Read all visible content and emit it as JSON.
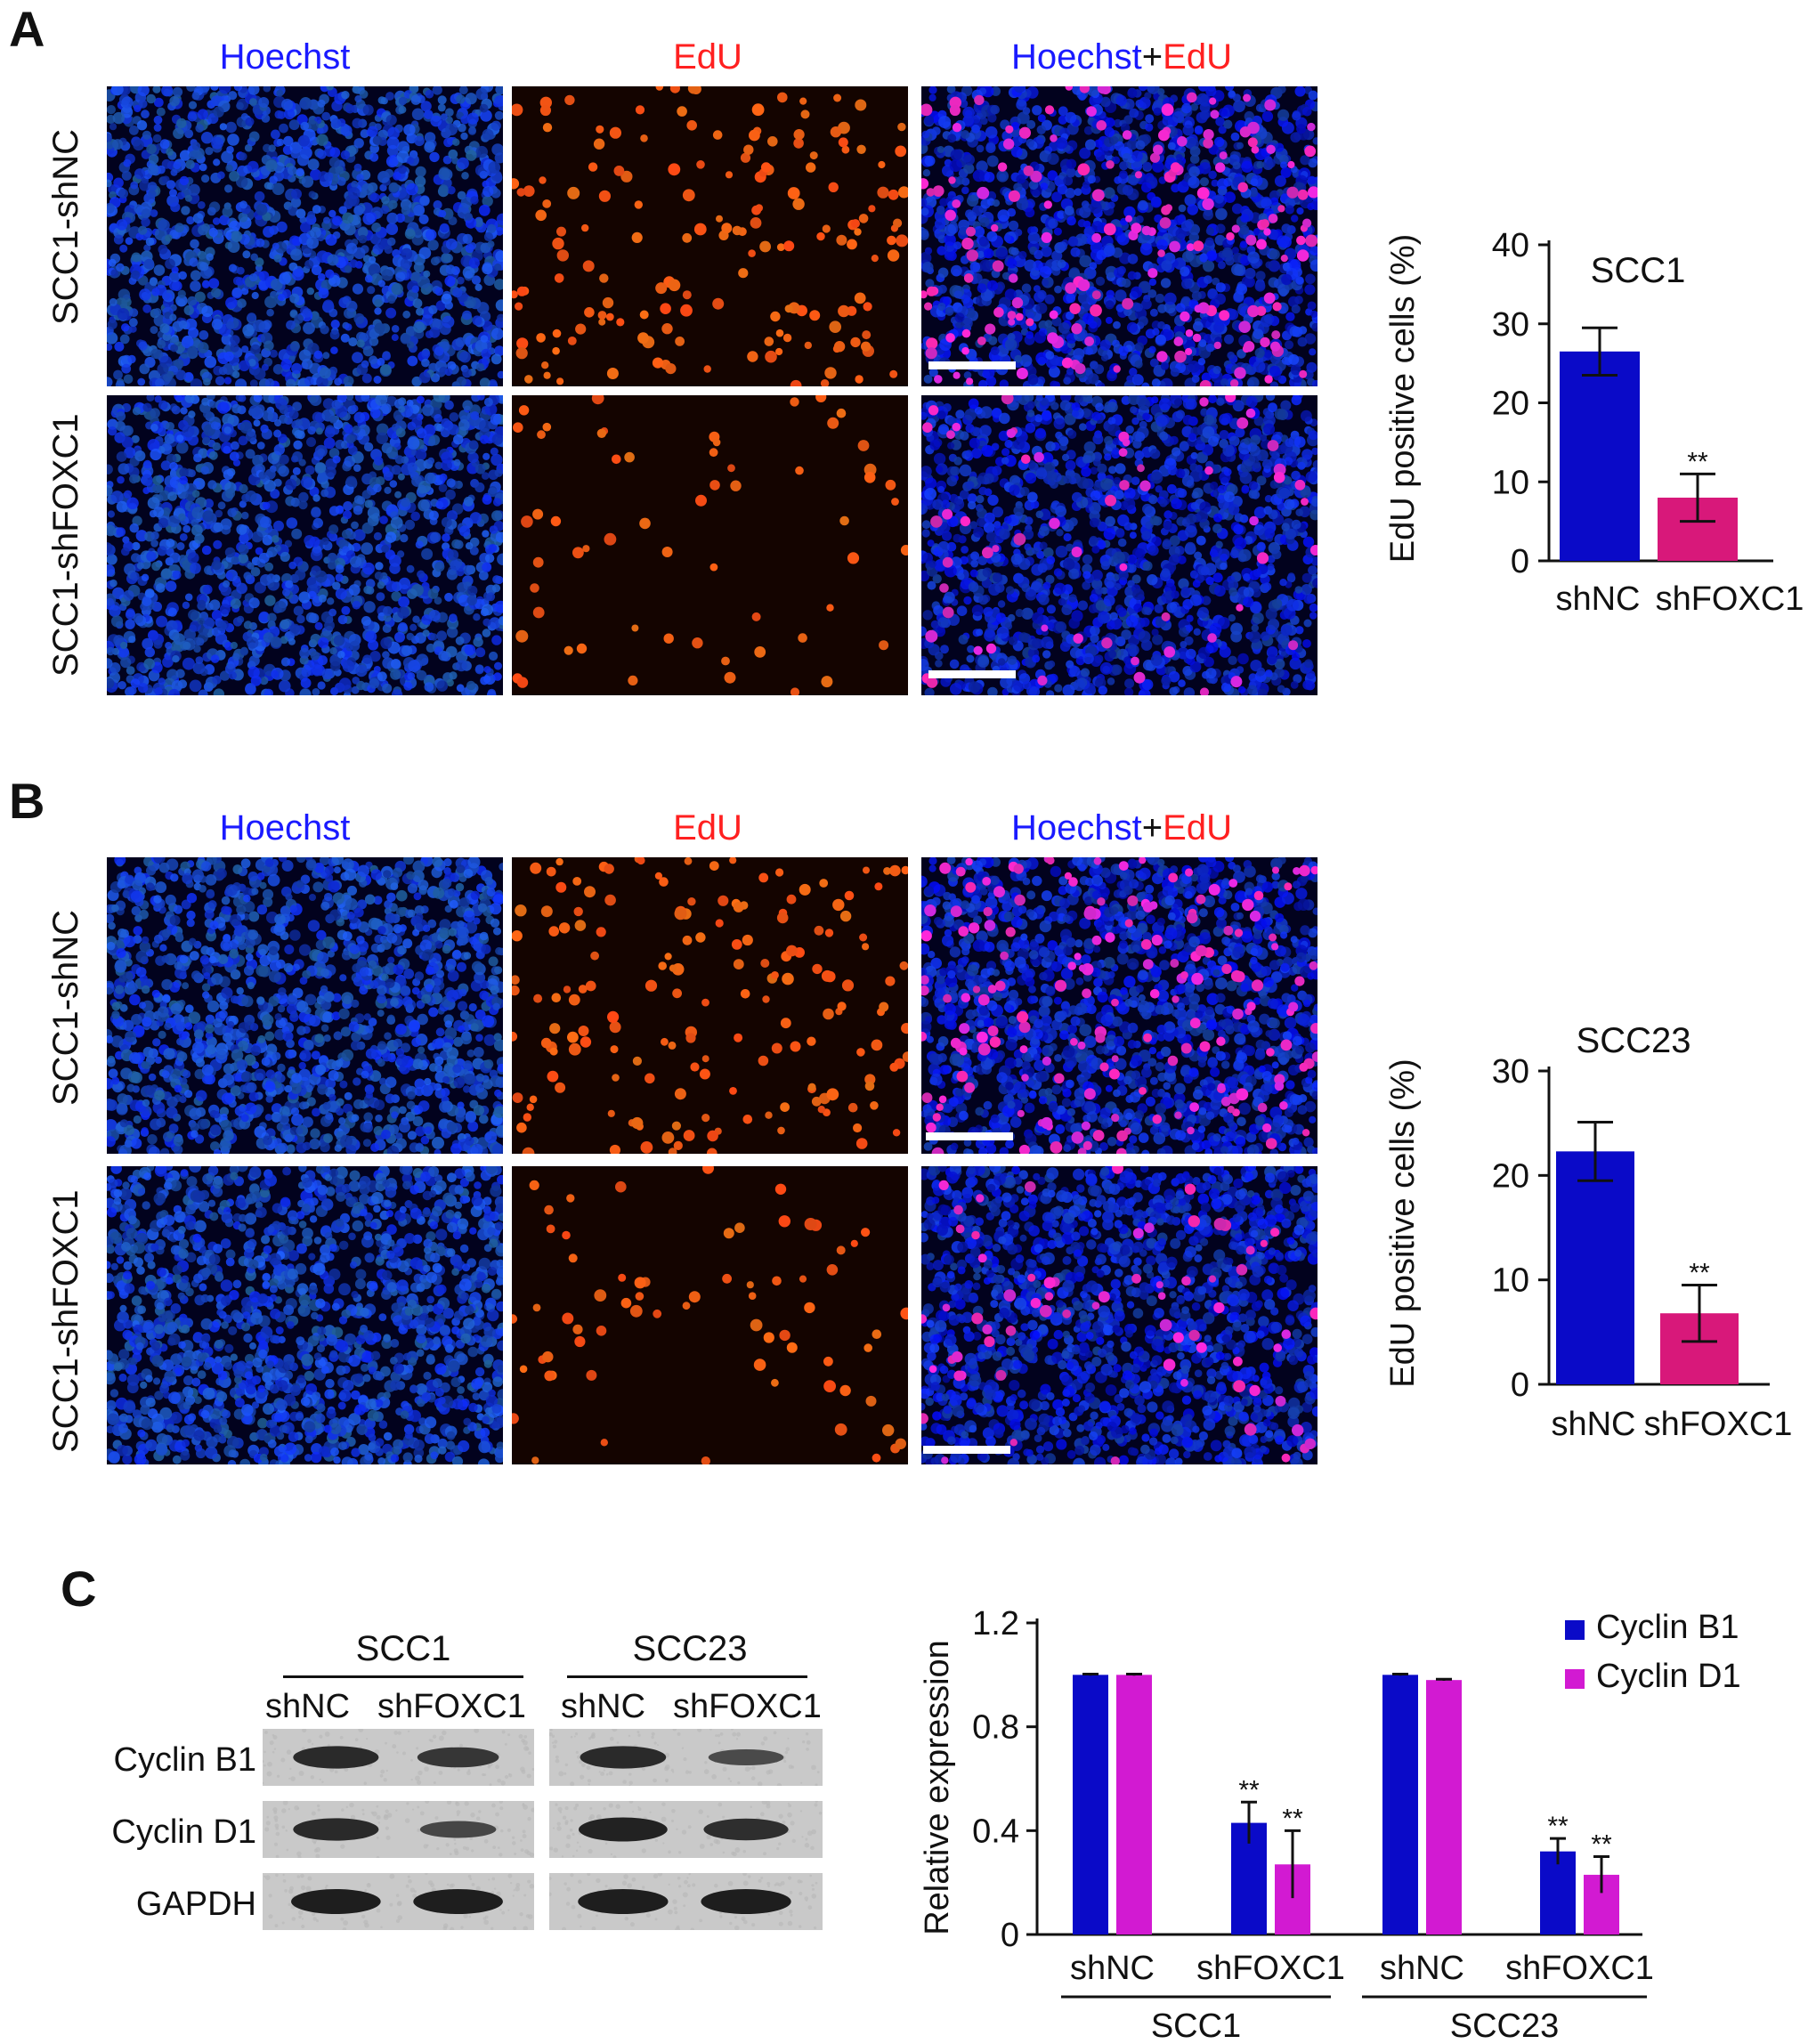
{
  "panels": {
    "a": {
      "letter": "A",
      "columns": [
        "Hoechst",
        "EdU",
        "Hoechst",
        "+",
        "EdU"
      ],
      "rows": [
        "SCC1-shNC",
        "SCC1-shFOXC1"
      ]
    },
    "b": {
      "letter": "B",
      "columns": [
        "Hoechst",
        "EdU",
        "Hoechst",
        "+",
        "EdU"
      ],
      "rows": [
        "SCC1-shNC",
        "SCC1-shFOXC1"
      ]
    },
    "c": {
      "letter": "C",
      "blot": {
        "groups": [
          "SCC1",
          "SCC23"
        ],
        "lanes": [
          "shNC",
          "shFOXC1",
          "shNC",
          "shFOXC1"
        ],
        "proteins": [
          "Cyclin B1",
          "Cyclin D1",
          "GAPDH"
        ]
      }
    }
  },
  "colors": {
    "hoechst_label": "#1a1aff",
    "edu_label": "#ff2020",
    "bar_blue": "#0a0ac8",
    "bar_magenta": "#d8187a",
    "cyclin_d1": "#d21ad2"
  },
  "chart_data": [
    {
      "type": "bar",
      "title": "SCC1",
      "ylabel": "EdU positive cells (%)",
      "categories": [
        "shNC",
        "shFOXC1"
      ],
      "values": [
        26.5,
        8.0
      ],
      "errors": [
        3.0,
        3.0
      ],
      "significance": [
        "",
        "**"
      ],
      "yticks": [
        "0",
        "10",
        "20",
        "30",
        "40"
      ],
      "ylim": [
        0,
        40
      ]
    },
    {
      "type": "bar",
      "title": "SCC23",
      "ylabel": "EdU positive cells (%)",
      "categories": [
        "shNC",
        "shFOXC1"
      ],
      "values": [
        22.3,
        6.8
      ],
      "errors": [
        2.8,
        2.7
      ],
      "significance": [
        "",
        "**"
      ],
      "yticks": [
        "0",
        "10",
        "20",
        "30"
      ],
      "ylim": [
        0,
        30
      ]
    },
    {
      "type": "bar",
      "ylabel": "Relative expression",
      "groups": [
        "SCC1",
        "SCC23"
      ],
      "categories": [
        "shNC",
        "shFOXC1",
        "shNC",
        "shFOXC1"
      ],
      "series": [
        {
          "name": "Cyclin B1",
          "values": [
            1.0,
            0.43,
            1.0,
            0.32
          ],
          "errors": [
            0.0,
            0.08,
            0.0,
            0.05
          ]
        },
        {
          "name": "Cyclin D1",
          "values": [
            1.0,
            0.27,
            0.98,
            0.23
          ],
          "errors": [
            0.0,
            0.13,
            0.0,
            0.07
          ]
        }
      ],
      "significance": [
        "",
        "**",
        "",
        "**"
      ],
      "yticks": [
        "0",
        "0.4",
        "0.8",
        "1.2"
      ],
      "ylim": [
        0,
        1.2
      ],
      "legend": "top-right"
    }
  ]
}
